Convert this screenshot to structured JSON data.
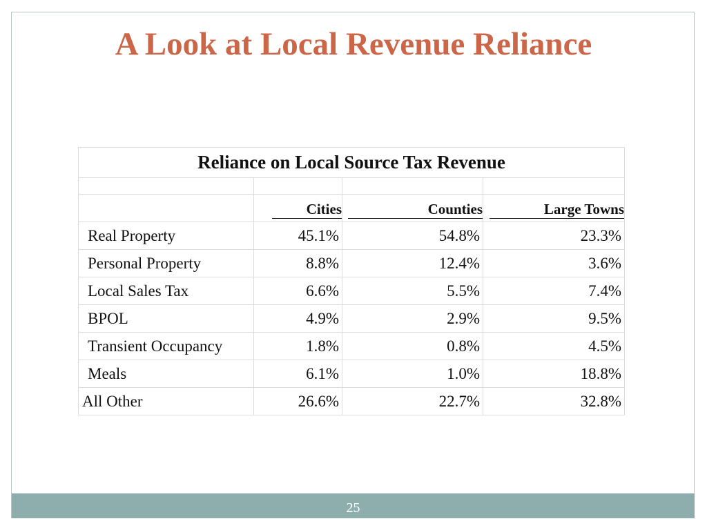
{
  "slide": {
    "title": "A Look at Local Revenue Reliance",
    "page_number": "25"
  },
  "table": {
    "title": "Reliance on Local Source Tax Revenue",
    "columns": [
      "Cities",
      "Counties",
      "Large Towns"
    ],
    "rows": [
      {
        "label": "Real Property",
        "values": [
          "45.1%",
          "54.8%",
          "23.3%"
        ]
      },
      {
        "label": "Personal Property",
        "values": [
          "8.8%",
          "12.4%",
          "3.6%"
        ]
      },
      {
        "label": "Local Sales Tax",
        "values": [
          "6.6%",
          "5.5%",
          "7.4%"
        ]
      },
      {
        "label": "BPOL",
        "values": [
          "4.9%",
          "2.9%",
          "9.5%"
        ]
      },
      {
        "label": "Transient Occupancy",
        "values": [
          "1.8%",
          "0.8%",
          "4.5%"
        ]
      },
      {
        "label": "Meals",
        "values": [
          "6.1%",
          "1.0%",
          "18.8%"
        ]
      },
      {
        "label": "All Other",
        "values": [
          "26.6%",
          "22.7%",
          "32.8%"
        ]
      }
    ]
  },
  "colors": {
    "title": "#cc6649",
    "footer_bar": "#8eaeae"
  }
}
